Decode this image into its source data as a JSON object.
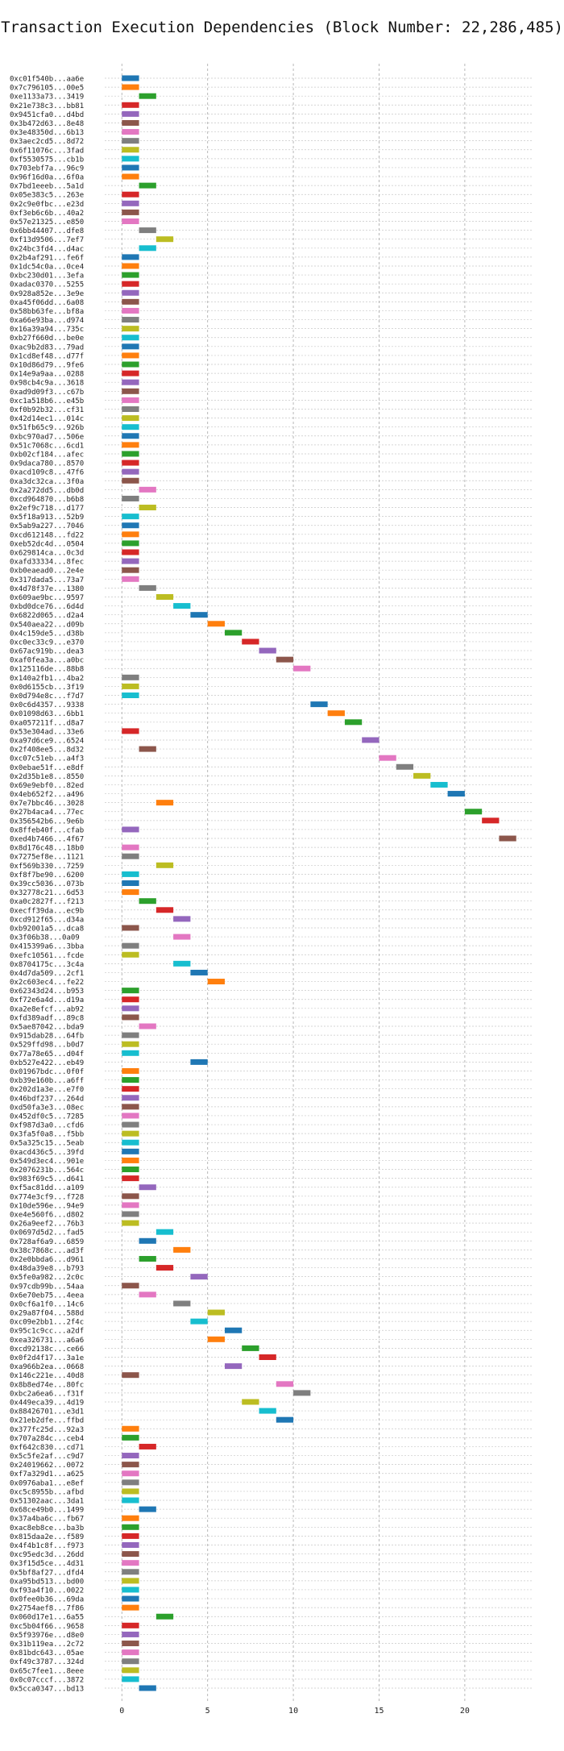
{
  "chart_data": {
    "type": "gantt-bar",
    "title": "Transaction Execution Dependencies (Block Number: 22,286,485)",
    "xlabel": "",
    "ylabel": "",
    "xlim": [
      -1,
      24
    ],
    "xticks": [
      0,
      5,
      10,
      15,
      20
    ],
    "grid": true,
    "tasks": [
      {
        "label": "0xc01f540b...aa6e",
        "start": 0,
        "color": "#1f77b4"
      },
      {
        "label": "0x7c796105...00e5",
        "start": 0,
        "color": "#ff7f0e"
      },
      {
        "label": "0xe1133a73...3419",
        "start": 1,
        "color": "#2ca02c"
      },
      {
        "label": "0x21e738c3...bb81",
        "start": 0,
        "color": "#d62728"
      },
      {
        "label": "0x9451cfa0...d4bd",
        "start": 0,
        "color": "#9467bd"
      },
      {
        "label": "0x3b472d63...8e48",
        "start": 0,
        "color": "#8c564b"
      },
      {
        "label": "0x3e48350d...6b13",
        "start": 0,
        "color": "#e377c2"
      },
      {
        "label": "0x3aec2cd5...8d72",
        "start": 0,
        "color": "#7f7f7f"
      },
      {
        "label": "0x6f11076c...3fad",
        "start": 0,
        "color": "#bcbd22"
      },
      {
        "label": "0xf5530575...cb1b",
        "start": 0,
        "color": "#17becf"
      },
      {
        "label": "0x703ebf7a...96c9",
        "start": 0,
        "color": "#1f77b4"
      },
      {
        "label": "0x96f16d0a...6f0a",
        "start": 0,
        "color": "#ff7f0e"
      },
      {
        "label": "0x7bd1eeeb...5a1d",
        "start": 1,
        "color": "#2ca02c"
      },
      {
        "label": "0x05e383c5...263e",
        "start": 0,
        "color": "#d62728"
      },
      {
        "label": "0x2c9e0fbc...e23d",
        "start": 0,
        "color": "#9467bd"
      },
      {
        "label": "0xf3eb6c6b...40a2",
        "start": 0,
        "color": "#8c564b"
      },
      {
        "label": "0x57e21325...e850",
        "start": 0,
        "color": "#e377c2"
      },
      {
        "label": "0x6bb44407...dfe8",
        "start": 1,
        "color": "#7f7f7f"
      },
      {
        "label": "0xf13d9506...7ef7",
        "start": 2,
        "color": "#bcbd22"
      },
      {
        "label": "0x24bc3fd4...d4ac",
        "start": 1,
        "color": "#17becf"
      },
      {
        "label": "0x2b4af291...fe6f",
        "start": 0,
        "color": "#1f77b4"
      },
      {
        "label": "0x1dc54c0a...0ce4",
        "start": 0,
        "color": "#ff7f0e"
      },
      {
        "label": "0xbc230d01...3efa",
        "start": 0,
        "color": "#2ca02c"
      },
      {
        "label": "0xadac0370...5255",
        "start": 0,
        "color": "#d62728"
      },
      {
        "label": "0x928a852e...3e9e",
        "start": 0,
        "color": "#9467bd"
      },
      {
        "label": "0xa45f06dd...6a08",
        "start": 0,
        "color": "#8c564b"
      },
      {
        "label": "0x58bb63fe...bf8a",
        "start": 0,
        "color": "#e377c2"
      },
      {
        "label": "0xa66e93ba...d974",
        "start": 0,
        "color": "#7f7f7f"
      },
      {
        "label": "0x16a39a94...735c",
        "start": 0,
        "color": "#bcbd22"
      },
      {
        "label": "0xb27f660d...be0e",
        "start": 0,
        "color": "#17becf"
      },
      {
        "label": "0xac9b2d83...79ad",
        "start": 0,
        "color": "#1f77b4"
      },
      {
        "label": "0x1cd8ef48...d77f",
        "start": 0,
        "color": "#ff7f0e"
      },
      {
        "label": "0x10d86d79...9fe6",
        "start": 0,
        "color": "#2ca02c"
      },
      {
        "label": "0x14e9a9aa...0288",
        "start": 0,
        "color": "#d62728"
      },
      {
        "label": "0x98cb4c9a...3618",
        "start": 0,
        "color": "#9467bd"
      },
      {
        "label": "0xad9d09f3...c67b",
        "start": 0,
        "color": "#8c564b"
      },
      {
        "label": "0xc1a518b6...e45b",
        "start": 0,
        "color": "#e377c2"
      },
      {
        "label": "0xf0b92b32...cf31",
        "start": 0,
        "color": "#7f7f7f"
      },
      {
        "label": "0x42d14ec1...014c",
        "start": 0,
        "color": "#bcbd22"
      },
      {
        "label": "0x51fb65c9...926b",
        "start": 0,
        "color": "#17becf"
      },
      {
        "label": "0xbc970ad7...506e",
        "start": 0,
        "color": "#1f77b4"
      },
      {
        "label": "0x51c7068c...6cd1",
        "start": 0,
        "color": "#ff7f0e"
      },
      {
        "label": "0xb02cf184...afec",
        "start": 0,
        "color": "#2ca02c"
      },
      {
        "label": "0x9daca780...8570",
        "start": 0,
        "color": "#d62728"
      },
      {
        "label": "0xacd109c8...47f6",
        "start": 0,
        "color": "#9467bd"
      },
      {
        "label": "0xa3dc32ca...3f0a",
        "start": 0,
        "color": "#8c564b"
      },
      {
        "label": "0x2a272dd5...db0d",
        "start": 1,
        "color": "#e377c2"
      },
      {
        "label": "0xcd964870...b6b8",
        "start": 0,
        "color": "#7f7f7f"
      },
      {
        "label": "0x2ef9c718...d177",
        "start": 1,
        "color": "#bcbd22"
      },
      {
        "label": "0x5f18a913...52b9",
        "start": 0,
        "color": "#17becf"
      },
      {
        "label": "0x5ab9a227...7046",
        "start": 0,
        "color": "#1f77b4"
      },
      {
        "label": "0xcd612148...fd22",
        "start": 0,
        "color": "#ff7f0e"
      },
      {
        "label": "0xeb52dc4d...0504",
        "start": 0,
        "color": "#2ca02c"
      },
      {
        "label": "0x629814ca...0c3d",
        "start": 0,
        "color": "#d62728"
      },
      {
        "label": "0xafd33334...8fec",
        "start": 0,
        "color": "#9467bd"
      },
      {
        "label": "0xb0eaead0...2e4e",
        "start": 0,
        "color": "#8c564b"
      },
      {
        "label": "0x317dada5...73a7",
        "start": 0,
        "color": "#e377c2"
      },
      {
        "label": "0x4d78f37e...1380",
        "start": 1,
        "color": "#7f7f7f"
      },
      {
        "label": "0x609ae9bc...9597",
        "start": 2,
        "color": "#bcbd22"
      },
      {
        "label": "0xbd0dce76...6d4d",
        "start": 3,
        "color": "#17becf"
      },
      {
        "label": "0x6822d065...d2a4",
        "start": 4,
        "color": "#1f77b4"
      },
      {
        "label": "0x540aea22...d09b",
        "start": 5,
        "color": "#ff7f0e"
      },
      {
        "label": "0x4c159de5...d38b",
        "start": 6,
        "color": "#2ca02c"
      },
      {
        "label": "0xc0ec33c9...e370",
        "start": 7,
        "color": "#d62728"
      },
      {
        "label": "0x67ac919b...dea3",
        "start": 8,
        "color": "#9467bd"
      },
      {
        "label": "0xaf0fea3a...a0bc",
        "start": 9,
        "color": "#8c564b"
      },
      {
        "label": "0x125116de...88b8",
        "start": 10,
        "color": "#e377c2"
      },
      {
        "label": "0x140a2fb1...4ba2",
        "start": 0,
        "color": "#7f7f7f"
      },
      {
        "label": "0x0d6155cb...3f19",
        "start": 0,
        "color": "#bcbd22"
      },
      {
        "label": "0x0d794e8c...f7d7",
        "start": 0,
        "color": "#17becf"
      },
      {
        "label": "0x0c6d4357...9338",
        "start": 11,
        "color": "#1f77b4"
      },
      {
        "label": "0x01098d63...6bb1",
        "start": 12,
        "color": "#ff7f0e"
      },
      {
        "label": "0xa057211f...d8a7",
        "start": 13,
        "color": "#2ca02c"
      },
      {
        "label": "0x53e304ad...33e6",
        "start": 0,
        "color": "#d62728"
      },
      {
        "label": "0xa97d6ce9...6524",
        "start": 14,
        "color": "#9467bd"
      },
      {
        "label": "0x2f408ee5...8d32",
        "start": 1,
        "color": "#8c564b"
      },
      {
        "label": "0xc07c51eb...a4f3",
        "start": 15,
        "color": "#e377c2"
      },
      {
        "label": "0x0ebae51f...e8df",
        "start": 16,
        "color": "#7f7f7f"
      },
      {
        "label": "0x2d35b1e8...8550",
        "start": 17,
        "color": "#bcbd22"
      },
      {
        "label": "0x69e9ebf0...82ed",
        "start": 18,
        "color": "#17becf"
      },
      {
        "label": "0x4eb652f2...a496",
        "start": 19,
        "color": "#1f77b4"
      },
      {
        "label": "0x7e7bbc46...3028",
        "start": 2,
        "color": "#ff7f0e"
      },
      {
        "label": "0x27b4aca4...77ec",
        "start": 20,
        "color": "#2ca02c"
      },
      {
        "label": "0x356542b6...9e6b",
        "start": 21,
        "color": "#d62728"
      },
      {
        "label": "0x8ffeb40f...cfab",
        "start": 0,
        "color": "#9467bd"
      },
      {
        "label": "0xed4b7466...4f67",
        "start": 22,
        "color": "#8c564b"
      },
      {
        "label": "0x8d176c48...18b0",
        "start": 0,
        "color": "#e377c2"
      },
      {
        "label": "0x7275ef8e...1121",
        "start": 0,
        "color": "#7f7f7f"
      },
      {
        "label": "0xf569b330...7259",
        "start": 2,
        "color": "#bcbd22"
      },
      {
        "label": "0xf8f7be90...6200",
        "start": 0,
        "color": "#17becf"
      },
      {
        "label": "0x39cc5036...073b",
        "start": 0,
        "color": "#1f77b4"
      },
      {
        "label": "0x32778c21...6d53",
        "start": 0,
        "color": "#ff7f0e"
      },
      {
        "label": "0xa0c2827f...f213",
        "start": 1,
        "color": "#2ca02c"
      },
      {
        "label": "0xecff39da...ec9b",
        "start": 2,
        "color": "#d62728"
      },
      {
        "label": "0xcd912f65...d34a",
        "start": 3,
        "color": "#9467bd"
      },
      {
        "label": "0xb92001a5...dca8",
        "start": 0,
        "color": "#8c564b"
      },
      {
        "label": "0x3f06b38...0a09",
        "start": 3,
        "color": "#e377c2"
      },
      {
        "label": "0x415399a6...3bba",
        "start": 0,
        "color": "#7f7f7f"
      },
      {
        "label": "0xefc10561...fcde",
        "start": 0,
        "color": "#bcbd22"
      },
      {
        "label": "0x8704175c...3c4a",
        "start": 3,
        "color": "#17becf"
      },
      {
        "label": "0x4d7da509...2cf1",
        "start": 4,
        "color": "#1f77b4"
      },
      {
        "label": "0x2c603ec4...fe22",
        "start": 5,
        "color": "#ff7f0e"
      },
      {
        "label": "0x62343d24...b953",
        "start": 0,
        "color": "#2ca02c"
      },
      {
        "label": "0xf72e6a4d...d19a",
        "start": 0,
        "color": "#d62728"
      },
      {
        "label": "0xa2e8efcf...ab92",
        "start": 0,
        "color": "#9467bd"
      },
      {
        "label": "0xfd389adf...89c8",
        "start": 0,
        "color": "#8c564b"
      },
      {
        "label": "0x5ae87042...bda9",
        "start": 1,
        "color": "#e377c2"
      },
      {
        "label": "0x915dab28...64fb",
        "start": 0,
        "color": "#7f7f7f"
      },
      {
        "label": "0x529ffd98...b0d7",
        "start": 0,
        "color": "#bcbd22"
      },
      {
        "label": "0x77a78e65...d04f",
        "start": 0,
        "color": "#17becf"
      },
      {
        "label": "0xb527e422...eb49",
        "start": 4,
        "color": "#1f77b4"
      },
      {
        "label": "0x01967bdc...0f0f",
        "start": 0,
        "color": "#ff7f0e"
      },
      {
        "label": "0xb39e160b...a6ff",
        "start": 0,
        "color": "#2ca02c"
      },
      {
        "label": "0x202d1a3e...e7f0",
        "start": 0,
        "color": "#d62728"
      },
      {
        "label": "0x46bdf237...264d",
        "start": 0,
        "color": "#9467bd"
      },
      {
        "label": "0xd50fa3e3...08ec",
        "start": 0,
        "color": "#8c564b"
      },
      {
        "label": "0x452df0c5...7285",
        "start": 0,
        "color": "#e377c2"
      },
      {
        "label": "0xf987d3a0...cfd6",
        "start": 0,
        "color": "#7f7f7f"
      },
      {
        "label": "0x3fa5f0a8...f5bb",
        "start": 0,
        "color": "#bcbd22"
      },
      {
        "label": "0x5a325c15...5eab",
        "start": 0,
        "color": "#17becf"
      },
      {
        "label": "0xacd436c5...39fd",
        "start": 0,
        "color": "#1f77b4"
      },
      {
        "label": "0x549d3ec4...901e",
        "start": 0,
        "color": "#ff7f0e"
      },
      {
        "label": "0x2076231b...564c",
        "start": 0,
        "color": "#2ca02c"
      },
      {
        "label": "0x983f69c5...d641",
        "start": 0,
        "color": "#d62728"
      },
      {
        "label": "0xf5ac81dd...a109",
        "start": 1,
        "color": "#9467bd"
      },
      {
        "label": "0x774e3cf9...f728",
        "start": 0,
        "color": "#8c564b"
      },
      {
        "label": "0x10de596e...94e9",
        "start": 0,
        "color": "#e377c2"
      },
      {
        "label": "0xe4e560f6...d802",
        "start": 0,
        "color": "#7f7f7f"
      },
      {
        "label": "0x26a9eef2...76b3",
        "start": 0,
        "color": "#bcbd22"
      },
      {
        "label": "0x0697d5d2...fad5",
        "start": 2,
        "color": "#17becf"
      },
      {
        "label": "0x728af6a9...6859",
        "start": 1,
        "color": "#1f77b4"
      },
      {
        "label": "0x38c7868c...ad3f",
        "start": 3,
        "color": "#ff7f0e"
      },
      {
        "label": "0x2e0bbda6...d961",
        "start": 1,
        "color": "#2ca02c"
      },
      {
        "label": "0x48da39e8...b793",
        "start": 2,
        "color": "#d62728"
      },
      {
        "label": "0x5fe0a982...2c0c",
        "start": 4,
        "color": "#9467bd"
      },
      {
        "label": "0x97cdb99b...54aa",
        "start": 0,
        "color": "#8c564b"
      },
      {
        "label": "0x6e70eb75...4eea",
        "start": 1,
        "color": "#e377c2"
      },
      {
        "label": "0x0cf6a1f0...14c6",
        "start": 3,
        "color": "#7f7f7f"
      },
      {
        "label": "0x29a87f04...588d",
        "start": 5,
        "color": "#bcbd22"
      },
      {
        "label": "0xc09e2bb1...2f4c",
        "start": 4,
        "color": "#17becf"
      },
      {
        "label": "0x95c1c9cc...a2df",
        "start": 6,
        "color": "#1f77b4"
      },
      {
        "label": "0xea326731...a6a6",
        "start": 5,
        "color": "#ff7f0e"
      },
      {
        "label": "0xcd92138c...ce66",
        "start": 7,
        "color": "#2ca02c"
      },
      {
        "label": "0x0f2d4f17...3a1e",
        "start": 8,
        "color": "#d62728"
      },
      {
        "label": "0xa966b2ea...0668",
        "start": 6,
        "color": "#9467bd"
      },
      {
        "label": "0x146c221e...40d8",
        "start": 0,
        "color": "#8c564b"
      },
      {
        "label": "0x8b8ed74e...80fc",
        "start": 9,
        "color": "#e377c2"
      },
      {
        "label": "0xbc2a6ea6...f31f",
        "start": 10,
        "color": "#7f7f7f"
      },
      {
        "label": "0x449eca39...4d19",
        "start": 7,
        "color": "#bcbd22"
      },
      {
        "label": "0x88426701...e3d1",
        "start": 8,
        "color": "#17becf"
      },
      {
        "label": "0x21eb2dfe...ffbd",
        "start": 9,
        "color": "#1f77b4"
      },
      {
        "label": "0x377fc25d...92a3",
        "start": 0,
        "color": "#ff7f0e"
      },
      {
        "label": "0x707a284c...ceb4",
        "start": 0,
        "color": "#2ca02c"
      },
      {
        "label": "0xf642c830...cd71",
        "start": 1,
        "color": "#d62728"
      },
      {
        "label": "0x5c5fe2af...c9d7",
        "start": 0,
        "color": "#9467bd"
      },
      {
        "label": "0x24019662...0072",
        "start": 0,
        "color": "#8c564b"
      },
      {
        "label": "0xf7a329d1...a625",
        "start": 0,
        "color": "#e377c2"
      },
      {
        "label": "0x0976aba1...e8ef",
        "start": 0,
        "color": "#7f7f7f"
      },
      {
        "label": "0xc5c8955b...afbd",
        "start": 0,
        "color": "#bcbd22"
      },
      {
        "label": "0x51302aac...3da1",
        "start": 0,
        "color": "#17becf"
      },
      {
        "label": "0x68ce49b0...1499",
        "start": 1,
        "color": "#1f77b4"
      },
      {
        "label": "0x37a4ba6c...fb67",
        "start": 0,
        "color": "#ff7f0e"
      },
      {
        "label": "0xac8eb8ce...ba3b",
        "start": 0,
        "color": "#2ca02c"
      },
      {
        "label": "0x815daa2e...f589",
        "start": 0,
        "color": "#d62728"
      },
      {
        "label": "0x4f4b1c8f...f973",
        "start": 0,
        "color": "#9467bd"
      },
      {
        "label": "0xc95edc3d...26dd",
        "start": 0,
        "color": "#8c564b"
      },
      {
        "label": "0x3f15d5ce...4d31",
        "start": 0,
        "color": "#e377c2"
      },
      {
        "label": "0x5bf8af27...dfd4",
        "start": 0,
        "color": "#7f7f7f"
      },
      {
        "label": "0xa95bd513...bd00",
        "start": 0,
        "color": "#bcbd22"
      },
      {
        "label": "0xf93a4f10...0022",
        "start": 0,
        "color": "#17becf"
      },
      {
        "label": "0x0fee0b36...69da",
        "start": 0,
        "color": "#1f77b4"
      },
      {
        "label": "0x2754aef8...7f86",
        "start": 0,
        "color": "#ff7f0e"
      },
      {
        "label": "0x060d17e1...6a55",
        "start": 2,
        "color": "#2ca02c"
      },
      {
        "label": "0xc5b04f66...9658",
        "start": 0,
        "color": "#d62728"
      },
      {
        "label": "0x5f93976e...d8e0",
        "start": 0,
        "color": "#9467bd"
      },
      {
        "label": "0x31b119ea...2c72",
        "start": 0,
        "color": "#8c564b"
      },
      {
        "label": "0x81bdc643...05ae",
        "start": 0,
        "color": "#e377c2"
      },
      {
        "label": "0xf49c3787...324d",
        "start": 0,
        "color": "#7f7f7f"
      },
      {
        "label": "0x65c7fee1...8eee",
        "start": 0,
        "color": "#bcbd22"
      },
      {
        "label": "0x0c07cccf...3872",
        "start": 0,
        "color": "#17becf"
      },
      {
        "label": "0x5cca0347...bd13",
        "start": 1,
        "color": "#1f77b4"
      }
    ]
  }
}
